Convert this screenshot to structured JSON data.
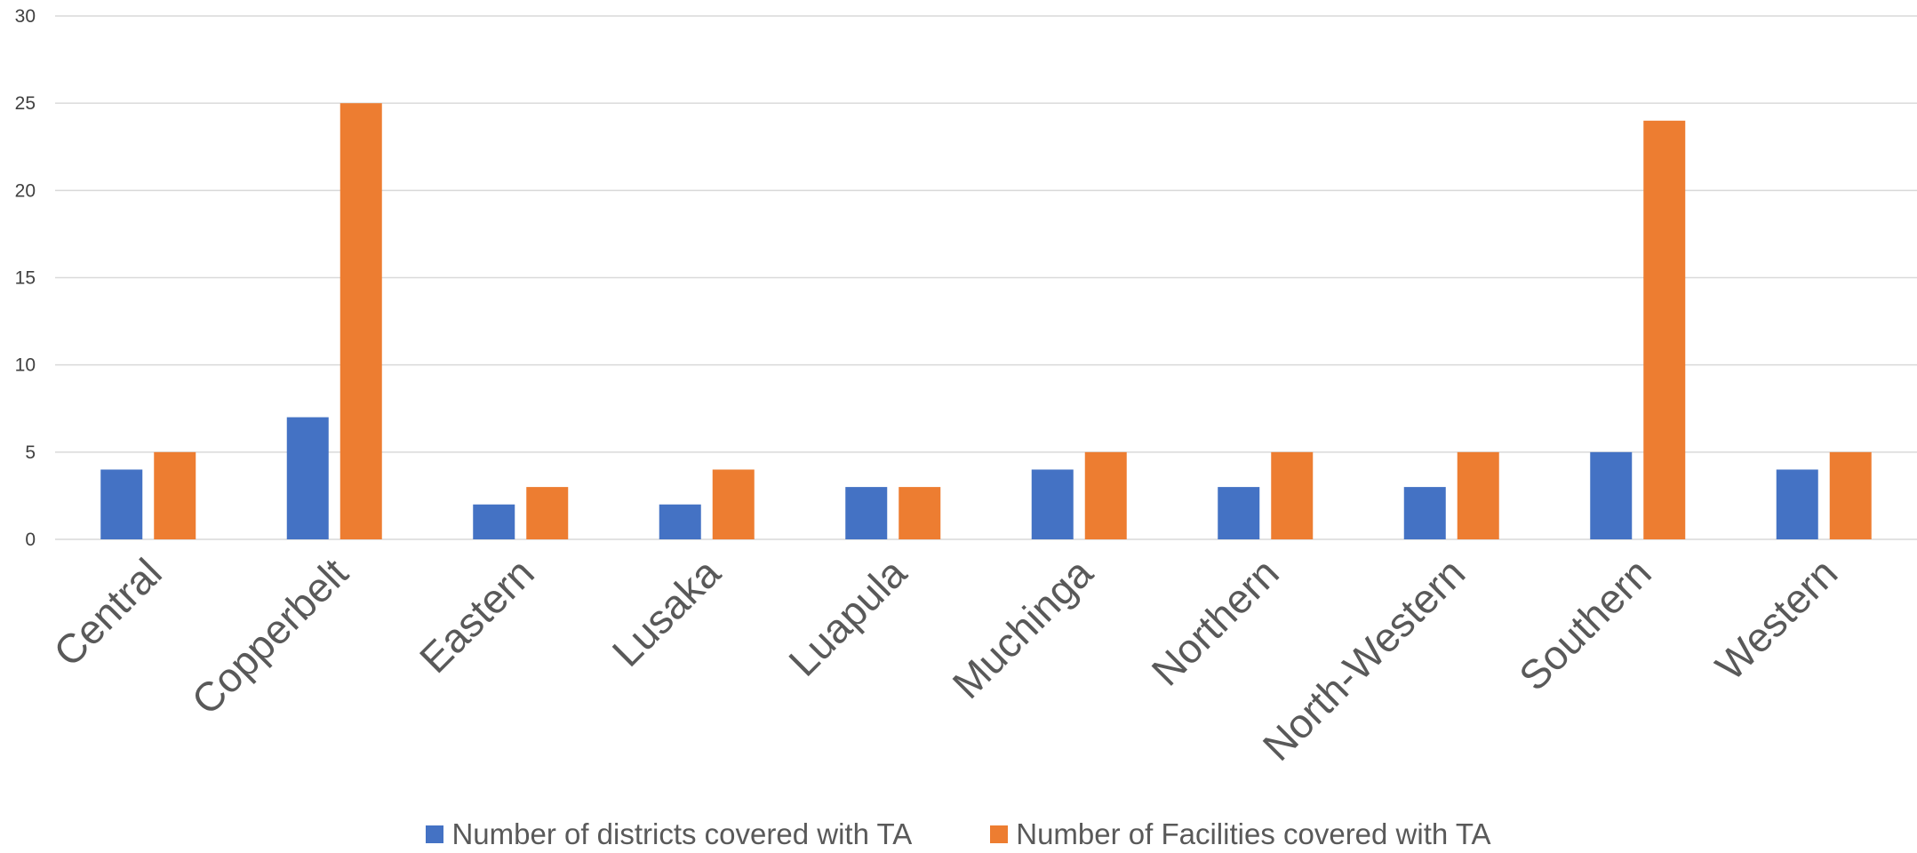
{
  "chart_data": {
    "type": "bar",
    "title": "",
    "xlabel": "",
    "ylabel": "",
    "ylim": [
      0,
      30
    ],
    "yticks": [
      0,
      5,
      10,
      15,
      20,
      25,
      30
    ],
    "grid": true,
    "legend_position": "bottom",
    "categories": [
      "Central",
      "Copperbelt",
      "Eastern",
      "Lusaka",
      "Luapula",
      "Muchinga",
      "Northern",
      "North-Western",
      "Southern",
      "Western"
    ],
    "series": [
      {
        "name": "Number of districts covered with TA",
        "color": "#4472C4",
        "values": [
          4,
          7,
          2,
          2,
          3,
          4,
          3,
          3,
          5,
          4
        ]
      },
      {
        "name": "Number of Facilities covered with TA",
        "color": "#ED7D31",
        "values": [
          5,
          25,
          3,
          4,
          3,
          5,
          5,
          5,
          24,
          5
        ]
      }
    ]
  }
}
